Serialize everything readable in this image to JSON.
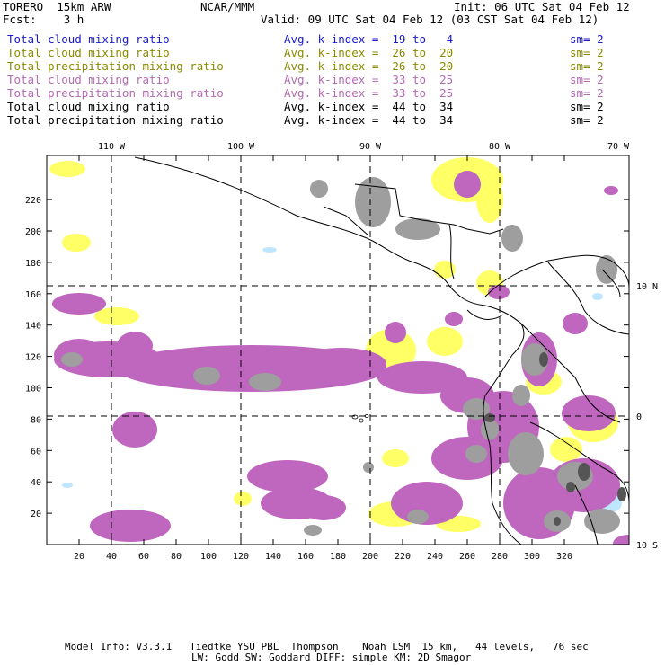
{
  "header": {
    "model": "TORERO  15km ARW",
    "org": "NCAR/MMM",
    "init": "Init: 06 UTC Sat 04 Feb 12",
    "fcst": "Fcst:    3 h",
    "valid": "Valid: 09 UTC Sat 04 Feb 12 (03 CST Sat 04 Feb 12)"
  },
  "legend": [
    {
      "field": "Total cloud mixing ratio",
      "kindex": "Avg. k-index =  19 to   4",
      "sm": "sm= 2",
      "color": "#1a1acc"
    },
    {
      "field": "Total cloud mixing ratio",
      "kindex": "Avg. k-index =  26 to  20",
      "sm": "sm= 2",
      "color": "#8a8a00"
    },
    {
      "field": "Total precipitation mixing ratio",
      "kindex": "Avg. k-index =  26 to  20",
      "sm": "sm= 2",
      "color": "#8a8a00"
    },
    {
      "field": "Total cloud mixing ratio",
      "kindex": "Avg. k-index =  33 to  25",
      "sm": "sm= 2",
      "color": "#b36ab3"
    },
    {
      "field": "Total precipitation mixing ratio",
      "kindex": "Avg. k-index =  33 to  25",
      "sm": "sm= 2",
      "color": "#b36ab3"
    },
    {
      "field": "Total cloud mixing ratio",
      "kindex": "Avg. k-index =  44 to  34",
      "sm": "sm= 2",
      "color": "#000000"
    },
    {
      "field": "Total precipitation mixing ratio",
      "kindex": "Avg. k-index =  44 to  34",
      "sm": "sm= 2",
      "color": "#000000"
    }
  ],
  "map": {
    "lon_labels": [
      "110 W",
      "100 W",
      "90 W",
      "80 W",
      "70 W"
    ],
    "lat_labels": [
      "10 N",
      "0",
      "10 S"
    ],
    "x_ticks": [
      "20",
      "40",
      "60",
      "80",
      "100",
      "120",
      "140",
      "160",
      "180",
      "200",
      "220",
      "240",
      "260",
      "280",
      "300",
      "320"
    ],
    "y_ticks": [
      "20",
      "40",
      "60",
      "80",
      "100",
      "120",
      "140",
      "160",
      "180",
      "200",
      "220"
    ],
    "colors": {
      "yellow": "#ffff66",
      "purple": "#bf66bf",
      "gray": "#9e9e9e",
      "darkgray": "#555555",
      "lightblue": "#bfe6ff"
    }
  },
  "footer": {
    "line1": "Model Info: V3.3.1   Tiedtke YSU PBL  Thompson    Noah LSM  15 km,   44 levels,   76 sec",
    "line2": "LW: Godd SW: Goddard DIFF: simple KM: 2D Smagor"
  }
}
